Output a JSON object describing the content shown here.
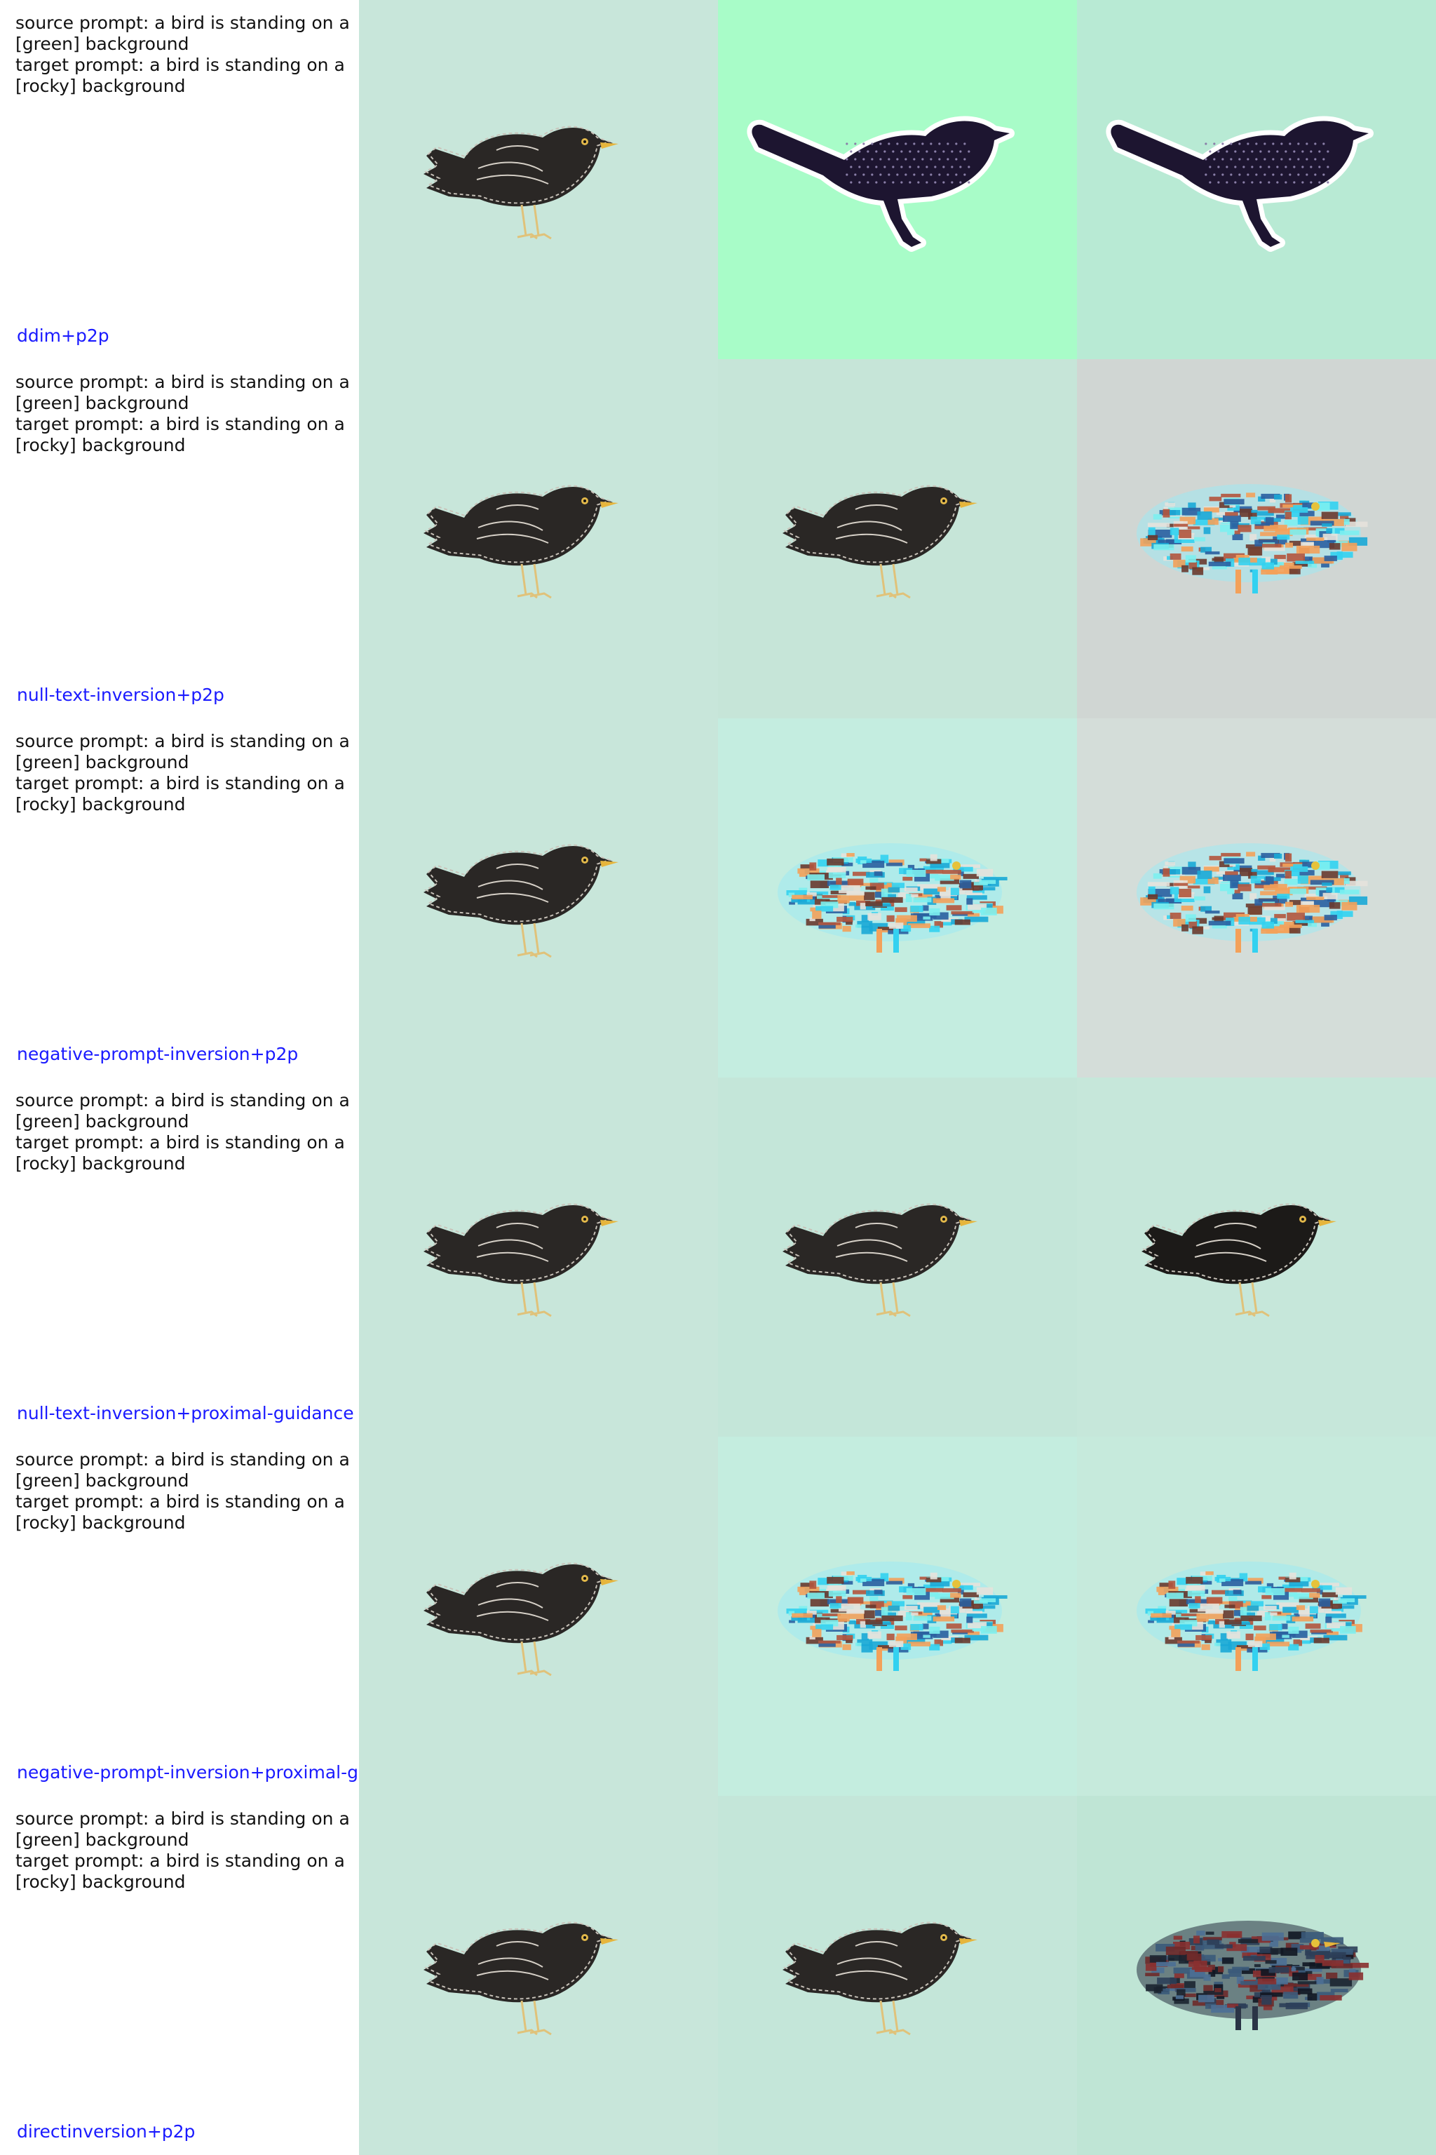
{
  "rows": [
    {
      "source_prompt": "source prompt: a bird is standing on a [green] background",
      "target_prompt": "target prompt: a bird is standing on a [rocky] background",
      "method": "ddim+p2p",
      "cells": [
        {
          "bg": "#c8e6da",
          "style": "sketch"
        },
        {
          "bg": "#a8fcc8",
          "style": "silhouette"
        },
        {
          "bg": "#b8ead4",
          "style": "silhouette"
        }
      ]
    },
    {
      "source_prompt": "source prompt: a bird is standing on a [green] background",
      "target_prompt": "target prompt: a bird is standing on a [rocky] background",
      "method": "null-text-inversion+p2p",
      "cells": [
        {
          "bg": "#c8e6da",
          "style": "sketch"
        },
        {
          "bg": "#c6e5d8",
          "style": "sketch"
        },
        {
          "bg": "#d0d6d3",
          "style": "glitch"
        }
      ]
    },
    {
      "source_prompt": "source prompt: a bird is standing on a [green] background",
      "target_prompt": "target prompt: a bird is standing on a [rocky] background",
      "method": "negative-prompt-inversion+p2p",
      "cells": [
        {
          "bg": "#c8e6da",
          "style": "sketch"
        },
        {
          "bg": "#c4ede0",
          "style": "glitch"
        },
        {
          "bg": "#d4ddd9",
          "style": "glitch"
        }
      ]
    },
    {
      "source_prompt": "source prompt: a bird is standing on a [green] background",
      "target_prompt": "target prompt: a bird is standing on a [rocky] background",
      "method": "null-text-inversion+proximal-guidance",
      "cells": [
        {
          "bg": "#c8e6da",
          "style": "sketch"
        },
        {
          "bg": "#c4e6d9",
          "style": "sketch"
        },
        {
          "bg": "#c6e7da",
          "style": "sketch-dark"
        }
      ]
    },
    {
      "source_prompt": "source prompt: a bird is standing on a [green] background",
      "target_prompt": "target prompt: a bird is standing on a [rocky] background",
      "method": "negative-prompt-inversion+proximal-guidance",
      "cells": [
        {
          "bg": "#c8e6da",
          "style": "sketch"
        },
        {
          "bg": "#c4eddf",
          "style": "glitch"
        },
        {
          "bg": "#c6eadc",
          "style": "glitch"
        }
      ]
    },
    {
      "source_prompt": "source prompt: a bird is standing on a [green] background",
      "target_prompt": "target prompt: a bird is standing on a [rocky] background",
      "method": "directinversion+p2p",
      "cells": [
        {
          "bg": "#c8e6da",
          "style": "sketch"
        },
        {
          "bg": "#c4e6d9",
          "style": "sketch"
        },
        {
          "bg": "#bfe5d5",
          "style": "glitch-dark"
        }
      ]
    }
  ]
}
